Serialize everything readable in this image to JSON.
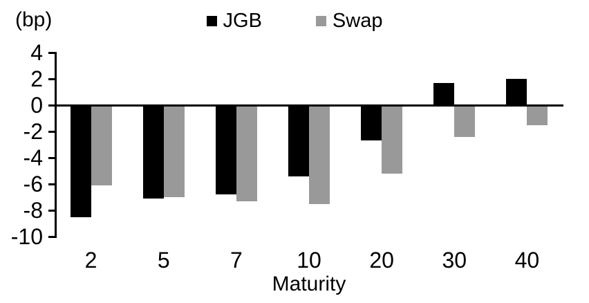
{
  "chart_data": {
    "type": "bar",
    "title": "",
    "unit_label": "(bp)",
    "xlabel": "Maturity",
    "categories": [
      "2",
      "5",
      "7",
      "10",
      "20",
      "30",
      "40"
    ],
    "series": [
      {
        "name": "JGB",
        "color": "#000000",
        "values": [
          -8.5,
          -7.1,
          -6.8,
          -5.4,
          -2.7,
          1.7,
          2.0
        ]
      },
      {
        "name": "Swap",
        "color": "#999999",
        "values": [
          -6.1,
          -7.0,
          -7.3,
          -7.5,
          -5.2,
          -2.4,
          -1.5
        ]
      }
    ],
    "ylim": [
      -10,
      4
    ],
    "ytick_step": 2,
    "yticks": [
      4,
      2,
      0,
      -2,
      -4,
      -6,
      -8,
      -10
    ],
    "legend_position": "top-center",
    "grid": false,
    "axis_color": "#000000",
    "background": "#ffffff"
  }
}
